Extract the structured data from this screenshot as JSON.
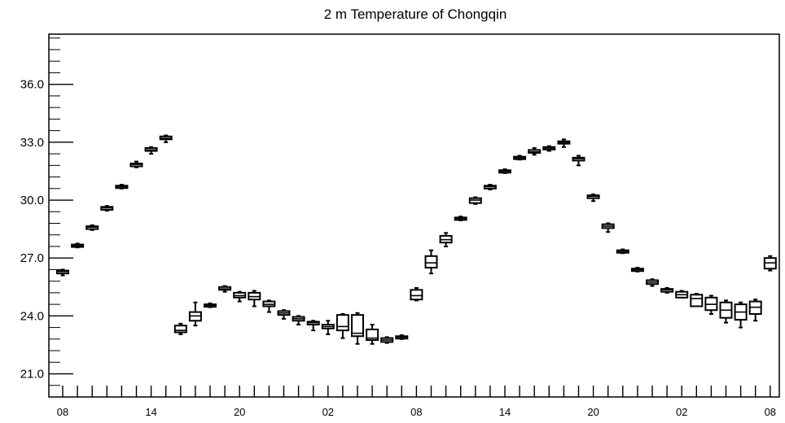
{
  "chart_data": {
    "type": "box",
    "title": "2 m Temperature of Chongqin",
    "xlabel": "",
    "ylabel": "",
    "ylim": [
      19.8,
      38.6
    ],
    "y_ticks": [
      "21.0",
      "24.0",
      "27.0",
      "30.0",
      "33.0",
      "36.0"
    ],
    "x_tick_labels": [
      "08",
      "14",
      "20",
      "02",
      "08",
      "14",
      "20",
      "02",
      "08"
    ],
    "x_tick_label_positions": [
      0,
      6,
      12,
      18,
      24,
      30,
      36,
      42,
      48
    ],
    "x_count": 49,
    "boxes": [
      {
        "x": 0,
        "min": 26.1,
        "q1": 26.2,
        "median": 26.3,
        "q3": 26.35,
        "max": 26.4
      },
      {
        "x": 1,
        "min": 27.55,
        "q1": 27.6,
        "median": 27.65,
        "q3": 27.7,
        "max": 27.75
      },
      {
        "x": 2,
        "min": 28.45,
        "q1": 28.5,
        "median": 28.6,
        "q3": 28.65,
        "max": 28.7
      },
      {
        "x": 3,
        "min": 29.45,
        "q1": 29.5,
        "median": 29.6,
        "q3": 29.65,
        "max": 29.7
      },
      {
        "x": 4,
        "min": 30.6,
        "q1": 30.65,
        "median": 30.7,
        "q3": 30.75,
        "max": 30.8
      },
      {
        "x": 5,
        "min": 31.7,
        "q1": 31.75,
        "median": 31.85,
        "q3": 31.9,
        "max": 32.0
      },
      {
        "x": 6,
        "min": 32.4,
        "q1": 32.55,
        "median": 32.6,
        "q3": 32.7,
        "max": 32.75
      },
      {
        "x": 7,
        "min": 33.0,
        "q1": 33.15,
        "median": 33.2,
        "q3": 33.3,
        "max": 33.35
      },
      {
        "x": 8,
        "min": 23.05,
        "q1": 23.15,
        "median": 23.25,
        "q3": 23.5,
        "max": 23.6
      },
      {
        "x": 9,
        "min": 23.5,
        "q1": 23.75,
        "median": 24.0,
        "q3": 24.2,
        "max": 24.7
      },
      {
        "x": 10,
        "min": 24.45,
        "q1": 24.5,
        "median": 24.55,
        "q3": 24.6,
        "max": 24.65
      },
      {
        "x": 11,
        "min": 25.25,
        "q1": 25.35,
        "median": 25.4,
        "q3": 25.5,
        "max": 25.55
      },
      {
        "x": 12,
        "min": 24.75,
        "q1": 24.95,
        "median": 25.05,
        "q3": 25.2,
        "max": 25.25
      },
      {
        "x": 13,
        "min": 24.5,
        "q1": 24.85,
        "median": 25.0,
        "q3": 25.2,
        "max": 25.3
      },
      {
        "x": 14,
        "min": 24.2,
        "q1": 24.5,
        "median": 24.6,
        "q3": 24.75,
        "max": 24.8
      },
      {
        "x": 15,
        "min": 23.85,
        "q1": 24.05,
        "median": 24.15,
        "q3": 24.25,
        "max": 24.3
      },
      {
        "x": 16,
        "min": 23.55,
        "q1": 23.75,
        "median": 23.85,
        "q3": 23.95,
        "max": 24.0
      },
      {
        "x": 17,
        "min": 23.25,
        "q1": 23.55,
        "median": 23.65,
        "q3": 23.7,
        "max": 23.75
      },
      {
        "x": 18,
        "min": 23.05,
        "q1": 23.35,
        "median": 23.45,
        "q3": 23.55,
        "max": 23.75
      },
      {
        "x": 19,
        "min": 22.85,
        "q1": 23.25,
        "median": 23.45,
        "q3": 24.05,
        "max": 24.1
      },
      {
        "x": 20,
        "min": 22.55,
        "q1": 22.95,
        "median": 23.1,
        "q3": 24.05,
        "max": 24.15
      },
      {
        "x": 21,
        "min": 22.55,
        "q1": 22.75,
        "median": 22.85,
        "q3": 23.3,
        "max": 23.55
      },
      {
        "x": 22,
        "min": 22.6,
        "q1": 22.65,
        "median": 22.75,
        "q3": 22.85,
        "max": 22.9
      },
      {
        "x": 23,
        "min": 22.8,
        "q1": 22.85,
        "median": 22.9,
        "q3": 22.95,
        "max": 23.0
      },
      {
        "x": 24,
        "min": 24.8,
        "q1": 24.85,
        "median": 25.05,
        "q3": 25.35,
        "max": 25.45
      },
      {
        "x": 25,
        "min": 26.2,
        "q1": 26.5,
        "median": 26.75,
        "q3": 27.1,
        "max": 27.4
      },
      {
        "x": 26,
        "min": 27.6,
        "q1": 27.8,
        "median": 27.95,
        "q3": 28.15,
        "max": 28.3
      },
      {
        "x": 27,
        "min": 28.95,
        "q1": 29.0,
        "median": 29.05,
        "q3": 29.1,
        "max": 29.15
      },
      {
        "x": 28,
        "min": 29.8,
        "q1": 29.85,
        "median": 30.0,
        "q3": 30.1,
        "max": 30.15
      },
      {
        "x": 29,
        "min": 30.55,
        "q1": 30.6,
        "median": 30.7,
        "q3": 30.75,
        "max": 30.8
      },
      {
        "x": 30,
        "min": 31.4,
        "q1": 31.45,
        "median": 31.5,
        "q3": 31.55,
        "max": 31.6
      },
      {
        "x": 31,
        "min": 32.1,
        "q1": 32.15,
        "median": 32.2,
        "q3": 32.25,
        "max": 32.3
      },
      {
        "x": 32,
        "min": 32.35,
        "q1": 32.45,
        "median": 32.5,
        "q3": 32.6,
        "max": 32.7
      },
      {
        "x": 33,
        "min": 32.55,
        "q1": 32.65,
        "median": 32.7,
        "q3": 32.75,
        "max": 32.8
      },
      {
        "x": 34,
        "min": 32.75,
        "q1": 32.95,
        "median": 33.0,
        "q3": 33.05,
        "max": 33.15
      },
      {
        "x": 35,
        "min": 31.8,
        "q1": 32.05,
        "median": 32.15,
        "q3": 32.2,
        "max": 32.3
      },
      {
        "x": 36,
        "min": 29.95,
        "q1": 30.1,
        "median": 30.2,
        "q3": 30.25,
        "max": 30.3
      },
      {
        "x": 37,
        "min": 28.35,
        "q1": 28.55,
        "median": 28.65,
        "q3": 28.75,
        "max": 28.8
      },
      {
        "x": 38,
        "min": 27.25,
        "q1": 27.3,
        "median": 27.35,
        "q3": 27.4,
        "max": 27.45
      },
      {
        "x": 39,
        "min": 26.3,
        "q1": 26.35,
        "median": 26.4,
        "q3": 26.45,
        "max": 26.5
      },
      {
        "x": 40,
        "min": 25.55,
        "q1": 25.65,
        "median": 25.75,
        "q3": 25.85,
        "max": 25.9
      },
      {
        "x": 41,
        "min": 25.2,
        "q1": 25.25,
        "median": 25.35,
        "q3": 25.4,
        "max": 25.45
      },
      {
        "x": 42,
        "min": 24.95,
        "q1": 24.95,
        "median": 25.1,
        "q3": 25.25,
        "max": 25.3
      },
      {
        "x": 43,
        "min": 24.5,
        "q1": 24.5,
        "median": 24.9,
        "q3": 25.1,
        "max": 25.15
      },
      {
        "x": 44,
        "min": 24.1,
        "q1": 24.3,
        "median": 24.6,
        "q3": 24.95,
        "max": 25.05
      },
      {
        "x": 45,
        "min": 23.65,
        "q1": 23.9,
        "median": 24.3,
        "q3": 24.7,
        "max": 24.8
      },
      {
        "x": 46,
        "min": 23.4,
        "q1": 23.8,
        "median": 24.2,
        "q3": 24.6,
        "max": 24.7
      },
      {
        "x": 47,
        "min": 23.75,
        "q1": 24.1,
        "median": 24.45,
        "q3": 24.75,
        "max": 24.85
      },
      {
        "x": 48,
        "min": 26.35,
        "q1": 26.45,
        "median": 26.75,
        "q3": 27.0,
        "max": 27.1
      }
    ],
    "grid": false,
    "legend": "none"
  }
}
